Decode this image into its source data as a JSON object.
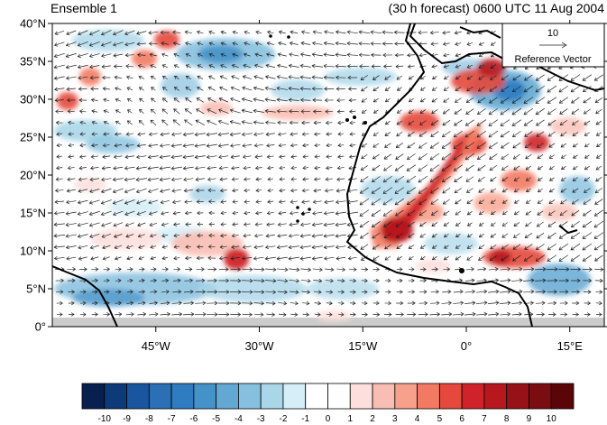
{
  "figure": {
    "title_left": "Ensemble 1",
    "title_right": "(30 h forecast) 0600 UTC 11 Aug 2004"
  },
  "map": {
    "extent": {
      "lon_min": -60,
      "lon_max": 20,
      "lat_min": 0,
      "lat_max": 40
    },
    "lat_ticks": [
      {
        "value": 0,
        "label": "0°"
      },
      {
        "value": 5,
        "label": "5°N"
      },
      {
        "value": 10,
        "label": "10°N"
      },
      {
        "value": 15,
        "label": "15°N"
      },
      {
        "value": 20,
        "label": "20°N"
      },
      {
        "value": 25,
        "label": "25°N"
      },
      {
        "value": 30,
        "label": "30°N"
      },
      {
        "value": 35,
        "label": "35°N"
      },
      {
        "value": 40,
        "label": "40°N"
      }
    ],
    "lon_ticks": [
      {
        "value": -45,
        "label": "45°W"
      },
      {
        "value": -30,
        "label": "30°W"
      },
      {
        "value": -15,
        "label": "15°W"
      },
      {
        "value": 0,
        "label": "0°"
      },
      {
        "value": 15,
        "label": "15°E"
      }
    ],
    "reference_vector": {
      "magnitude": "10",
      "label": "Reference Vector"
    },
    "colors": {
      "coast": "#000000",
      "missing": "#cccccc",
      "vector": "#222222"
    }
  },
  "colorbar": {
    "labels": [
      "-10",
      "-9",
      "-8",
      "-7",
      "-6",
      "-5",
      "-4",
      "-3",
      "-2",
      "-1",
      "0",
      "1",
      "2",
      "3",
      "4",
      "5",
      "6",
      "7",
      "8",
      "9",
      "10"
    ],
    "colors": [
      "#08204f",
      "#0d3a78",
      "#1a56a0",
      "#2b6fb4",
      "#2f7cc0",
      "#4592c8",
      "#63a8d3",
      "#86c0de",
      "#a9d6e8",
      "#d6eef7",
      "#ffffff",
      "#ffffff",
      "#fde0dd",
      "#f9beb3",
      "#f7a08c",
      "#f27a62",
      "#e5483c",
      "#cf2329",
      "#b6181e",
      "#961218",
      "#7a0d12",
      "#5a0508"
    ]
  }
}
